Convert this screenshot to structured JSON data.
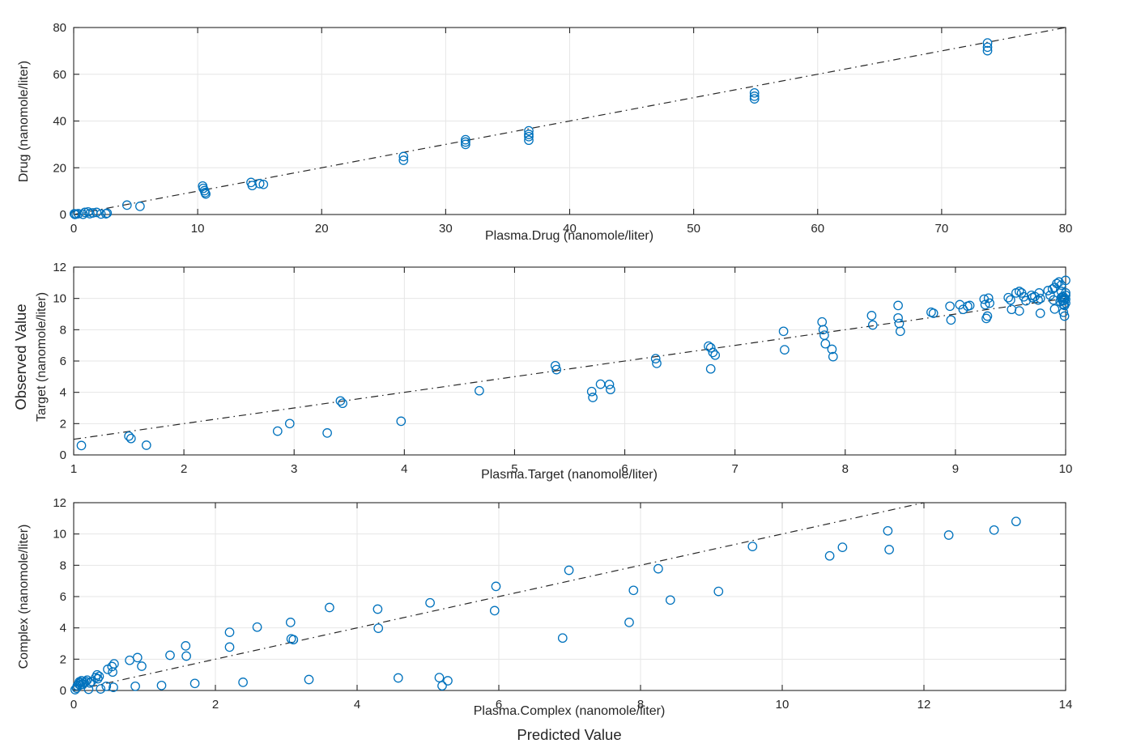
{
  "figure": {
    "shared_ylabel": "Observed Value",
    "shared_xlabel": "Predicted Value",
    "marker_color": "#0072BD",
    "line_color": "#262626",
    "grid_color": "#E6E6E6",
    "axis_color": "#262626",
    "background_color": "#FFFFFF"
  },
  "chart_data": [
    {
      "type": "scatter",
      "title": "",
      "xlabel": "Plasma.Drug (nanomole/liter)",
      "ylabel": "Drug (nanomole/liter)",
      "xlim": [
        0,
        80
      ],
      "ylim": [
        0,
        80
      ],
      "xticks": [
        0,
        10,
        20,
        30,
        40,
        50,
        60,
        70,
        80
      ],
      "yticks": [
        0,
        20,
        40,
        60,
        80
      ],
      "grid": true,
      "legend": "none",
      "reference_line": {
        "style": "dash-dot",
        "from": [
          0,
          0
        ],
        "to": [
          80,
          80
        ]
      },
      "points": [
        [
          0.05,
          0.3
        ],
        [
          0.1,
          0.05
        ],
        [
          0.2,
          0.2
        ],
        [
          0.37,
          0.35
        ],
        [
          0.76,
          0.1
        ],
        [
          0.9,
          0.9
        ],
        [
          1.16,
          1.1
        ],
        [
          1.3,
          0.35
        ],
        [
          1.55,
          0.7
        ],
        [
          1.85,
          0.9
        ],
        [
          2.2,
          0.2
        ],
        [
          2.6,
          0.3
        ],
        [
          2.7,
          0.6
        ],
        [
          4.3,
          4.0
        ],
        [
          5.35,
          3.5
        ],
        [
          10.4,
          12.2
        ],
        [
          10.45,
          11.2
        ],
        [
          10.55,
          10.2
        ],
        [
          10.6,
          9.4
        ],
        [
          10.65,
          8.8
        ],
        [
          14.3,
          13.7
        ],
        [
          14.4,
          12.4
        ],
        [
          15.0,
          13.2
        ],
        [
          15.3,
          12.9
        ],
        [
          26.6,
          24.8
        ],
        [
          26.6,
          23.2
        ],
        [
          31.6,
          32.0
        ],
        [
          31.6,
          31.0
        ],
        [
          31.6,
          30.0
        ],
        [
          36.7,
          35.8
        ],
        [
          36.7,
          34.3
        ],
        [
          36.7,
          33.3
        ],
        [
          36.7,
          31.8
        ],
        [
          54.9,
          52.0
        ],
        [
          54.9,
          50.6
        ],
        [
          54.9,
          49.5
        ],
        [
          73.7,
          73.4
        ],
        [
          73.7,
          71.6
        ],
        [
          73.7,
          70.1
        ]
      ]
    },
    {
      "type": "scatter",
      "title": "",
      "xlabel": "Plasma.Target (nanomole/liter)",
      "ylabel": "Target (nanomole/liter)",
      "xlim": [
        1,
        10
      ],
      "ylim": [
        0,
        12
      ],
      "xticks": [
        1,
        2,
        3,
        4,
        5,
        6,
        7,
        8,
        9,
        10
      ],
      "yticks": [
        0,
        2,
        4,
        6,
        8,
        10,
        12
      ],
      "grid": true,
      "legend": "none",
      "reference_line": {
        "style": "dash-dot",
        "from": [
          1,
          1
        ],
        "to": [
          10,
          10
        ]
      },
      "points": [
        [
          1.07,
          0.6
        ],
        [
          1.5,
          1.2
        ],
        [
          1.52,
          1.05
        ],
        [
          1.66,
          0.62
        ],
        [
          2.85,
          1.52
        ],
        [
          2.96,
          2.0
        ],
        [
          3.3,
          1.4
        ],
        [
          3.42,
          3.45
        ],
        [
          3.44,
          3.3
        ],
        [
          3.97,
          2.15
        ],
        [
          4.68,
          4.1
        ],
        [
          5.37,
          5.7
        ],
        [
          5.38,
          5.45
        ],
        [
          5.7,
          4.05
        ],
        [
          5.71,
          3.67
        ],
        [
          5.78,
          4.52
        ],
        [
          5.86,
          4.5
        ],
        [
          5.87,
          4.18
        ],
        [
          6.28,
          6.15
        ],
        [
          6.29,
          5.85
        ],
        [
          6.76,
          6.95
        ],
        [
          6.78,
          6.85
        ],
        [
          6.8,
          6.55
        ],
        [
          6.82,
          6.38
        ],
        [
          6.78,
          5.5
        ],
        [
          7.44,
          7.9
        ],
        [
          7.45,
          6.72
        ],
        [
          7.79,
          8.5
        ],
        [
          7.8,
          8.0
        ],
        [
          7.81,
          7.65
        ],
        [
          7.82,
          7.1
        ],
        [
          7.88,
          6.75
        ],
        [
          7.89,
          6.28
        ],
        [
          8.24,
          8.9
        ],
        [
          8.25,
          8.3
        ],
        [
          8.48,
          9.55
        ],
        [
          8.48,
          8.75
        ],
        [
          8.49,
          8.4
        ],
        [
          8.5,
          7.9
        ],
        [
          8.78,
          9.12
        ],
        [
          8.8,
          9.05
        ],
        [
          8.95,
          9.5
        ],
        [
          8.96,
          8.62
        ],
        [
          9.04,
          9.6
        ],
        [
          9.07,
          9.3
        ],
        [
          9.11,
          9.5
        ],
        [
          9.13,
          9.55
        ],
        [
          9.26,
          9.95
        ],
        [
          9.27,
          9.6
        ],
        [
          9.28,
          8.72
        ],
        [
          9.29,
          8.87
        ],
        [
          9.3,
          10.02
        ],
        [
          9.31,
          9.7
        ],
        [
          9.48,
          10.05
        ],
        [
          9.5,
          9.9
        ],
        [
          9.51,
          9.3
        ],
        [
          9.55,
          10.35
        ],
        [
          9.58,
          10.45
        ],
        [
          9.6,
          10.35
        ],
        [
          9.62,
          10.1
        ],
        [
          9.58,
          9.2
        ],
        [
          9.64,
          9.85
        ],
        [
          9.69,
          10.2
        ],
        [
          9.7,
          10.05
        ],
        [
          9.72,
          10.12
        ],
        [
          9.75,
          9.9
        ],
        [
          9.76,
          10.35
        ],
        [
          9.77,
          10.0
        ],
        [
          9.77,
          9.05
        ],
        [
          9.84,
          10.5
        ],
        [
          9.86,
          10.2
        ],
        [
          9.88,
          10.6
        ],
        [
          9.9,
          10.7
        ],
        [
          9.89,
          9.9
        ],
        [
          9.9,
          9.32
        ],
        [
          9.92,
          10.95
        ],
        [
          9.94,
          11.05
        ],
        [
          9.96,
          10.85
        ],
        [
          9.96,
          10.45
        ],
        [
          9.97,
          10.1
        ],
        [
          9.98,
          9.85
        ],
        [
          9.98,
          9.6
        ],
        [
          9.98,
          9.12
        ],
        [
          9.99,
          8.87
        ],
        [
          10,
          11.15
        ],
        [
          10,
          10.35
        ],
        [
          10,
          10.2
        ],
        [
          10,
          9.95
        ],
        [
          10,
          9.7
        ],
        [
          9.99,
          10.0
        ],
        [
          9.97,
          9.9
        ],
        [
          9.96,
          10.05
        ],
        [
          9.95,
          9.8
        ],
        [
          9.99,
          9.55
        ],
        [
          9.98,
          10.1
        ]
      ]
    },
    {
      "type": "scatter",
      "title": "",
      "xlabel": "Plasma.Complex (nanomole/liter)",
      "ylabel": "Complex (nanomole/liter)",
      "xlim": [
        0,
        14
      ],
      "ylim": [
        0,
        12
      ],
      "xticks": [
        0,
        2,
        4,
        6,
        8,
        10,
        12,
        14
      ],
      "yticks": [
        0,
        2,
        4,
        6,
        8,
        10,
        12
      ],
      "grid": true,
      "legend": "none",
      "reference_line": {
        "style": "dash-dot",
        "from": [
          0,
          0
        ],
        "to": [
          12,
          12
        ]
      },
      "points": [
        [
          0.02,
          0.05
        ],
        [
          0.04,
          0.15
        ],
        [
          0.05,
          0.3
        ],
        [
          0.07,
          0.42
        ],
        [
          0.08,
          0.55
        ],
        [
          0.09,
          0.35
        ],
        [
          0.1,
          0.5
        ],
        [
          0.11,
          0.62
        ],
        [
          0.13,
          0.4
        ],
        [
          0.15,
          0.5
        ],
        [
          0.17,
          0.57
        ],
        [
          0.19,
          0.66
        ],
        [
          0.21,
          0.08
        ],
        [
          0.23,
          0.48
        ],
        [
          0.25,
          0.57
        ],
        [
          0.31,
          0.82
        ],
        [
          0.33,
          1.0
        ],
        [
          0.34,
          0.75
        ],
        [
          0.36,
          0.9
        ],
        [
          0.38,
          0.1
        ],
        [
          0.46,
          0.27
        ],
        [
          0.48,
          1.35
        ],
        [
          0.54,
          1.53
        ],
        [
          0.55,
          1.18
        ],
        [
          0.57,
          1.7
        ],
        [
          0.56,
          0.2
        ],
        [
          0.79,
          1.93
        ],
        [
          0.9,
          2.1
        ],
        [
          0.96,
          1.55
        ],
        [
          0.87,
          0.27
        ],
        [
          1.24,
          0.32
        ],
        [
          1.36,
          2.25
        ],
        [
          1.58,
          2.85
        ],
        [
          1.59,
          2.2
        ],
        [
          1.71,
          0.45
        ],
        [
          2.2,
          3.72
        ],
        [
          2.2,
          2.77
        ],
        [
          2.39,
          0.52
        ],
        [
          2.59,
          4.05
        ],
        [
          3.06,
          4.35
        ],
        [
          3.07,
          3.3
        ],
        [
          3.1,
          3.25
        ],
        [
          3.32,
          0.7
        ],
        [
          3.61,
          5.3
        ],
        [
          4.29,
          5.2
        ],
        [
          4.3,
          3.98
        ],
        [
          4.58,
          0.8
        ],
        [
          5.03,
          5.6
        ],
        [
          5.16,
          0.82
        ],
        [
          5.2,
          0.3
        ],
        [
          5.28,
          0.62
        ],
        [
          5.94,
          5.1
        ],
        [
          5.96,
          6.65
        ],
        [
          6.9,
          3.35
        ],
        [
          6.99,
          7.68
        ],
        [
          7.84,
          4.35
        ],
        [
          7.9,
          6.4
        ],
        [
          8.25,
          7.78
        ],
        [
          8.42,
          5.78
        ],
        [
          9.1,
          6.33
        ],
        [
          9.58,
          9.2
        ],
        [
          10.67,
          8.6
        ],
        [
          10.85,
          9.15
        ],
        [
          11.49,
          10.2
        ],
        [
          11.51,
          9.0
        ],
        [
          12.35,
          9.93
        ],
        [
          12.99,
          10.25
        ],
        [
          13.3,
          10.8
        ]
      ]
    }
  ]
}
